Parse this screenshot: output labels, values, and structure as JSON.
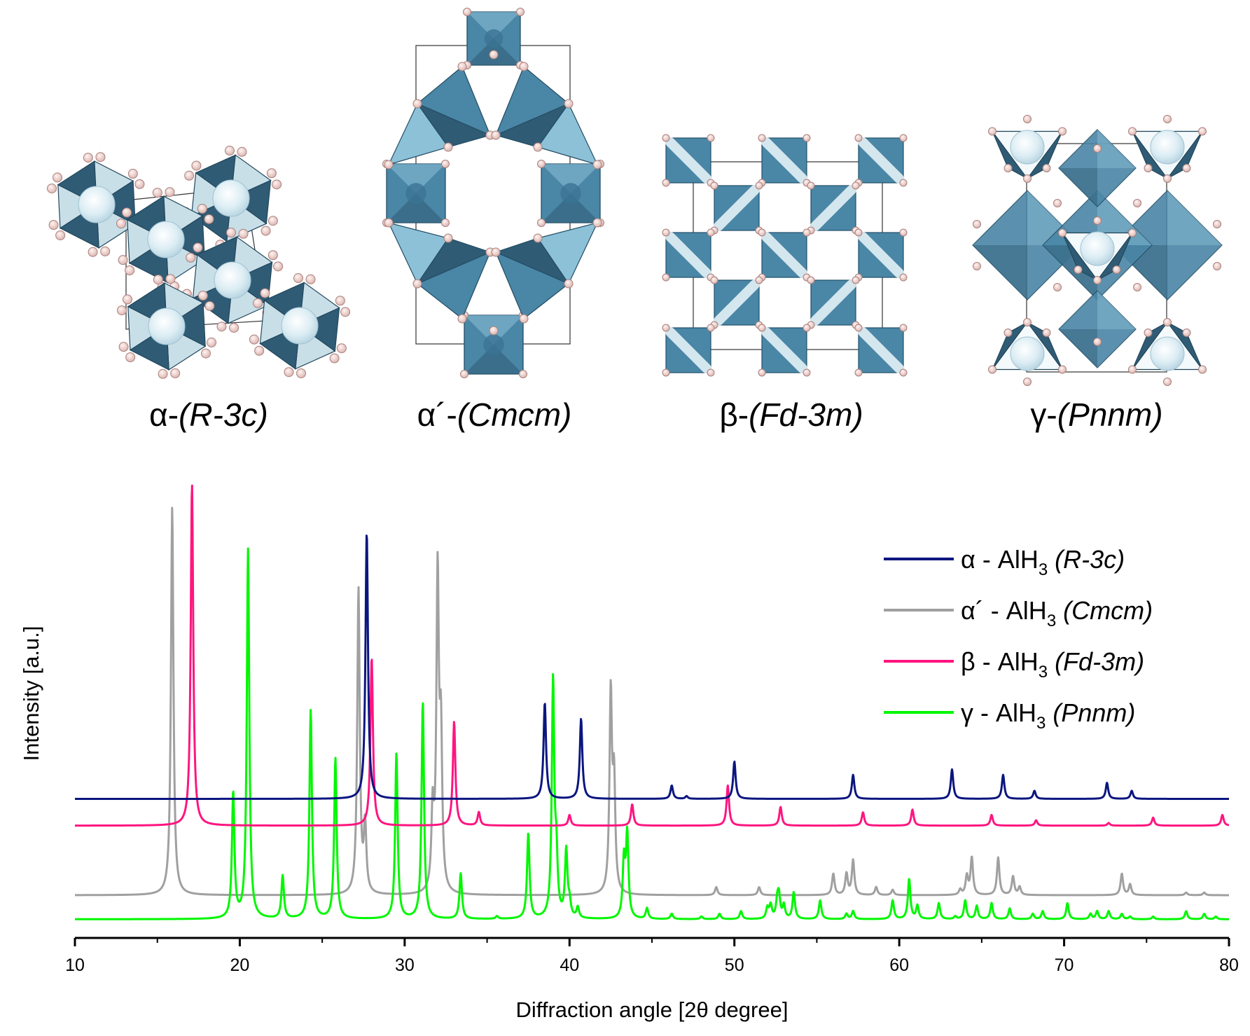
{
  "structures": [
    {
      "id": "alpha",
      "greek": "α-",
      "space_group": "(R-3c)"
    },
    {
      "id": "alpha-prime",
      "greek": "α´-",
      "space_group": "(Cmcm)"
    },
    {
      "id": "beta",
      "greek": "β-",
      "space_group": "(Fd-3m)"
    },
    {
      "id": "gamma",
      "greek": "γ-",
      "space_group": "(Pnnm)"
    }
  ],
  "colors": {
    "octa_dark": "#2f5b75",
    "octa_mid": "#4a86a6",
    "octa_light": "#8cc1d8",
    "octa_pale": "#e4f1f6",
    "atom_h": "#f2d5d2",
    "atom_h_edge": "#a9807c",
    "atom_al": "#dceef5"
  },
  "chart_data": {
    "type": "line",
    "xlabel": "Diffraction angle [2θ degree]",
    "ylabel": "Intensity [a.u.]",
    "xlim": [
      10,
      80
    ],
    "xticks": [
      10,
      20,
      30,
      40,
      50,
      60,
      70,
      80
    ],
    "legend_position": "right",
    "series": [
      {
        "name": "α - AlH3 (R-3c)",
        "legend_greek": "α",
        "legend_formula": "AlH",
        "legend_sub": "3",
        "legend_sg": "(R-3c)",
        "color": "#0a167f",
        "baseline": 0.36,
        "peaks": [
          [
            27.7,
            1.0
          ],
          [
            38.5,
            0.36
          ],
          [
            40.7,
            0.3
          ],
          [
            46.2,
            0.05
          ],
          [
            47.1,
            0.01
          ],
          [
            50.0,
            0.14
          ],
          [
            57.2,
            0.09
          ],
          [
            63.2,
            0.11
          ],
          [
            66.3,
            0.09
          ],
          [
            68.2,
            0.03
          ],
          [
            72.6,
            0.06
          ],
          [
            74.1,
            0.03
          ]
        ]
      },
      {
        "name": "α´- AlH3 (Cmcm)",
        "legend_greek": "α´",
        "legend_formula": "AlH",
        "legend_sub": "3",
        "legend_sg": "(Cmcm)",
        "color": "#a0a0a0",
        "baseline": 0.0,
        "peaks": [
          [
            15.9,
            1.45
          ],
          [
            27.2,
            1.14
          ],
          [
            27.6,
            0.25
          ],
          [
            31.7,
            0.29
          ],
          [
            32.0,
            1.17
          ],
          [
            32.2,
            0.55
          ],
          [
            42.5,
            0.74
          ],
          [
            42.7,
            0.4
          ],
          [
            48.9,
            0.03
          ],
          [
            51.5,
            0.03
          ],
          [
            56.0,
            0.08
          ],
          [
            56.8,
            0.08
          ],
          [
            57.2,
            0.13
          ],
          [
            58.6,
            0.03
          ],
          [
            59.6,
            0.02
          ],
          [
            63.7,
            0.02
          ],
          [
            64.1,
            0.07
          ],
          [
            64.4,
            0.14
          ],
          [
            66.0,
            0.14
          ],
          [
            66.9,
            0.07
          ],
          [
            67.3,
            0.03
          ],
          [
            73.5,
            0.08
          ],
          [
            74.0,
            0.04
          ],
          [
            77.4,
            0.01
          ],
          [
            78.5,
            0.01
          ]
        ]
      },
      {
        "name": "β - AlH3 (Fd-3m)",
        "legend_greek": "β",
        "legend_formula": "AlH",
        "legend_sub": "3",
        "legend_sg": "(Fd-3m)",
        "color": "#ff1580",
        "baseline": 0.26,
        "peaks": [
          [
            17.1,
            1.28
          ],
          [
            28.0,
            0.63
          ],
          [
            33.0,
            0.39
          ],
          [
            34.5,
            0.05
          ],
          [
            40.0,
            0.04
          ],
          [
            43.8,
            0.08
          ],
          [
            49.6,
            0.15
          ],
          [
            52.8,
            0.07
          ],
          [
            57.8,
            0.05
          ],
          [
            60.8,
            0.06
          ],
          [
            65.6,
            0.04
          ],
          [
            68.3,
            0.02
          ],
          [
            72.7,
            0.01
          ],
          [
            75.4,
            0.03
          ],
          [
            79.6,
            0.04
          ]
        ]
      },
      {
        "name": "γ - AlH3 (Pnnm)",
        "legend_greek": "γ",
        "legend_formula": "AlH",
        "legend_sub": "3",
        "legend_sg": "(Pnnm)",
        "color": "#00f700",
        "baseline": -0.09,
        "peaks": [
          [
            19.6,
            0.47
          ],
          [
            20.5,
            1.38
          ],
          [
            22.6,
            0.16
          ],
          [
            24.3,
            0.78
          ],
          [
            25.8,
            0.6
          ],
          [
            29.5,
            0.62
          ],
          [
            31.1,
            0.81
          ],
          [
            33.4,
            0.17
          ],
          [
            35.6,
            0.01
          ],
          [
            37.5,
            0.32
          ],
          [
            39.0,
            0.88
          ],
          [
            39.2,
            0.2
          ],
          [
            39.8,
            0.25
          ],
          [
            40.0,
            0.05
          ],
          [
            40.5,
            0.04
          ],
          [
            43.3,
            0.21
          ],
          [
            43.5,
            0.31
          ],
          [
            44.7,
            0.04
          ],
          [
            46.2,
            0.02
          ],
          [
            48.0,
            0.01
          ],
          [
            49.1,
            0.02
          ],
          [
            50.4,
            0.03
          ],
          [
            52.0,
            0.04
          ],
          [
            52.2,
            0.05
          ],
          [
            52.6,
            0.06
          ],
          [
            52.7,
            0.08
          ],
          [
            53.0,
            0.05
          ],
          [
            53.6,
            0.1
          ],
          [
            55.2,
            0.07
          ],
          [
            56.8,
            0.02
          ],
          [
            57.2,
            0.03
          ],
          [
            59.6,
            0.07
          ],
          [
            60.6,
            0.15
          ],
          [
            61.1,
            0.05
          ],
          [
            62.4,
            0.06
          ],
          [
            63.4,
            0.01
          ],
          [
            64.0,
            0.07
          ],
          [
            64.7,
            0.05
          ],
          [
            65.6,
            0.06
          ],
          [
            66.7,
            0.04
          ],
          [
            68.1,
            0.02
          ],
          [
            68.7,
            0.03
          ],
          [
            70.2,
            0.06
          ],
          [
            71.6,
            0.02
          ],
          [
            72.0,
            0.03
          ],
          [
            72.7,
            0.03
          ],
          [
            73.5,
            0.02
          ],
          [
            74.0,
            0.01
          ],
          [
            75.4,
            0.01
          ],
          [
            77.4,
            0.03
          ],
          [
            78.5,
            0.02
          ],
          [
            79.2,
            0.01
          ]
        ]
      }
    ]
  }
}
